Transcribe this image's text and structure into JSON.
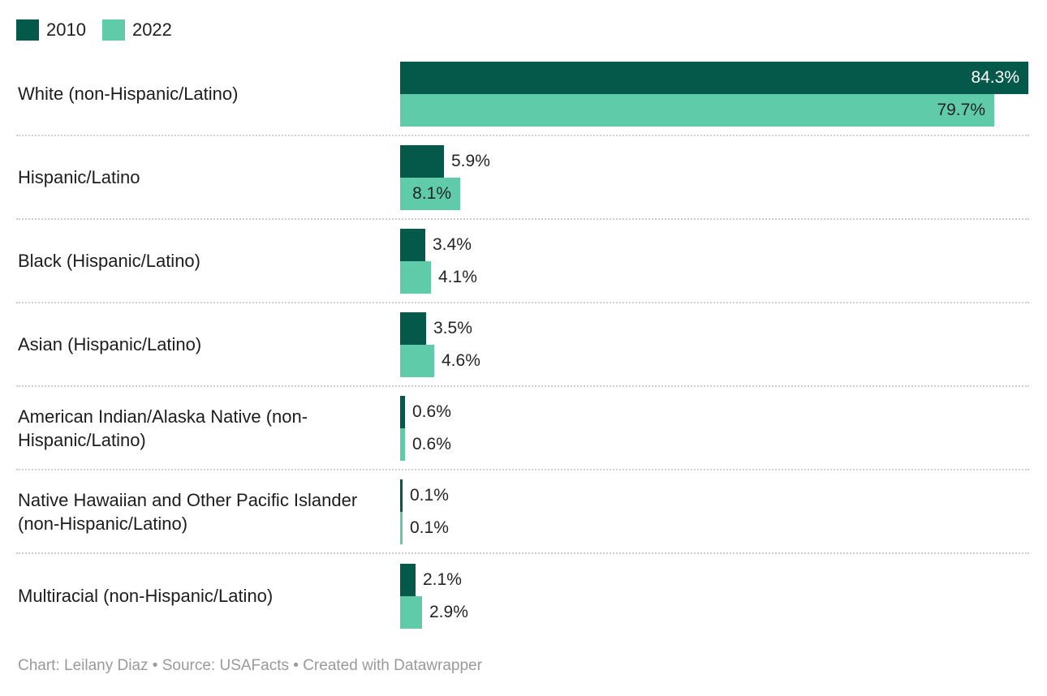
{
  "chart_data": {
    "type": "bar",
    "orientation": "horizontal",
    "unit": "%",
    "grid": false,
    "legend_position": "top-left",
    "xlim": [
      0,
      84.3
    ],
    "categories": [
      "White (non-Hispanic/Latino)",
      "Hispanic/Latino",
      "Black (Hispanic/Latino)",
      "Asian (Hispanic/Latino)",
      "American Indian/Alaska Native (non-Hispanic/Latino)",
      "Native Hawaiian and Other Pacific Islander (non-Hispanic/Latino)",
      "Multiracial (non-Hispanic/Latino)"
    ],
    "series": [
      {
        "name": "2010",
        "color": "#04594a",
        "values": [
          84.3,
          5.9,
          3.4,
          3.5,
          0.6,
          0.1,
          2.1
        ]
      },
      {
        "name": "2022",
        "color": "#5fcba8",
        "values": [
          79.7,
          8.1,
          4.1,
          4.6,
          0.6,
          0.1,
          2.9
        ]
      }
    ],
    "value_label_format": "0.0%"
  },
  "footer": {
    "text": "Chart: Leilany Diaz • Source: USAFacts • Created with Datawrapper"
  }
}
